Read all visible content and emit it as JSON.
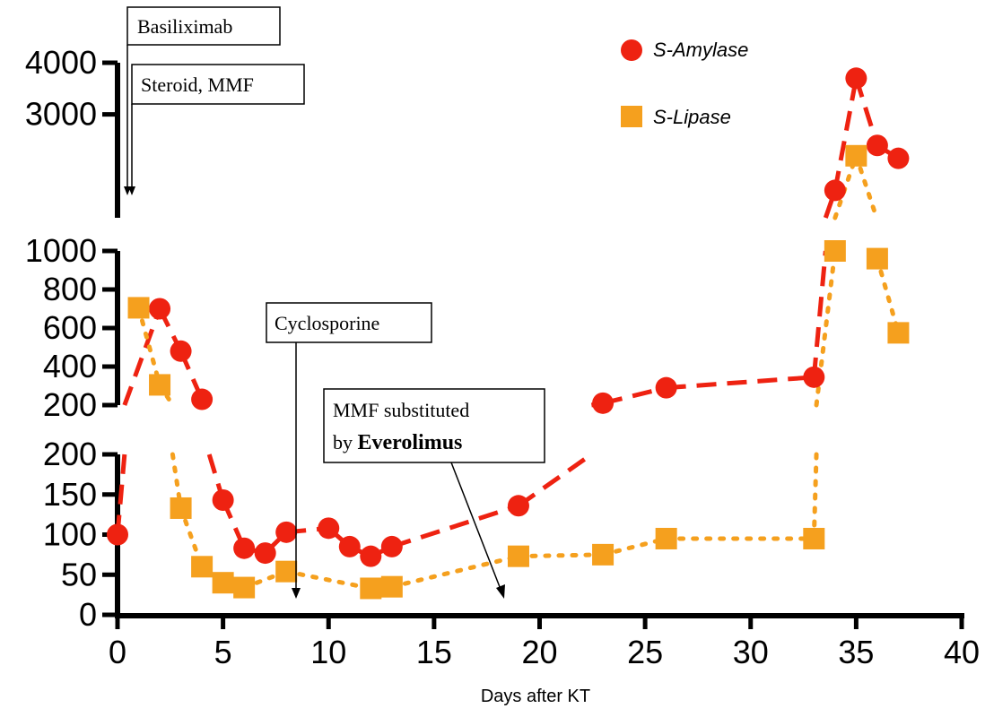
{
  "chart_data": {
    "type": "line",
    "title": "",
    "xlabel": "Days after KT",
    "ylabel": "",
    "xlim": [
      0,
      40
    ],
    "x_ticks": [
      0,
      5,
      10,
      15,
      20,
      25,
      30,
      35,
      40
    ],
    "y_scale": "broken (three segments)",
    "y_segments": [
      {
        "range": [
          0,
          200
        ],
        "ticks": [
          0,
          50,
          100,
          150,
          200
        ]
      },
      {
        "range": [
          200,
          1000
        ],
        "ticks": [
          200,
          400,
          600,
          800,
          1000
        ]
      },
      {
        "range": [
          1000,
          4000
        ],
        "ticks": [
          3000,
          4000
        ]
      }
    ],
    "legend_position": "top-right",
    "series": [
      {
        "name": "S-Amylase",
        "color": "#ee2211",
        "marker": "circle",
        "line": "dashed",
        "points": [
          [
            0,
            100
          ],
          [
            2,
            700
          ],
          [
            3,
            480
          ],
          [
            4,
            230
          ],
          [
            5,
            143
          ],
          [
            6,
            83
          ],
          [
            7,
            77
          ],
          [
            8,
            103
          ],
          [
            10,
            108
          ],
          [
            11,
            85
          ],
          [
            12,
            73
          ],
          [
            13,
            85
          ],
          [
            19,
            136
          ],
          [
            23,
            210
          ],
          [
            26,
            290
          ],
          [
            33,
            345
          ],
          [
            34,
            1530
          ],
          [
            35,
            3700
          ],
          [
            36,
            2400
          ],
          [
            37,
            2150
          ]
        ]
      },
      {
        "name": "S-Lipase",
        "color": "#f5a01e",
        "marker": "square",
        "line": "dotted",
        "points": [
          [
            1,
            705
          ],
          [
            2,
            305
          ],
          [
            3,
            133
          ],
          [
            4,
            60
          ],
          [
            5,
            40
          ],
          [
            6,
            34
          ],
          [
            8,
            54
          ],
          [
            12,
            33
          ],
          [
            13,
            35
          ],
          [
            19,
            73
          ],
          [
            23,
            75
          ],
          [
            26,
            95
          ],
          [
            33,
            95
          ],
          [
            34,
            1000
          ],
          [
            35,
            2200
          ],
          [
            36,
            960
          ],
          [
            37,
            575
          ]
        ]
      }
    ],
    "annotations": [
      {
        "text": "Basiliximab",
        "day": 0.5
      },
      {
        "text": "Steroid, MMF",
        "day": 0.5
      },
      {
        "text": "Cyclosporine",
        "day": 8.5
      },
      {
        "text_line1": "MMF substituted",
        "text_line2_prefix": "by ",
        "text_line2_bold": "Everolimus",
        "day": 18.5
      }
    ]
  }
}
